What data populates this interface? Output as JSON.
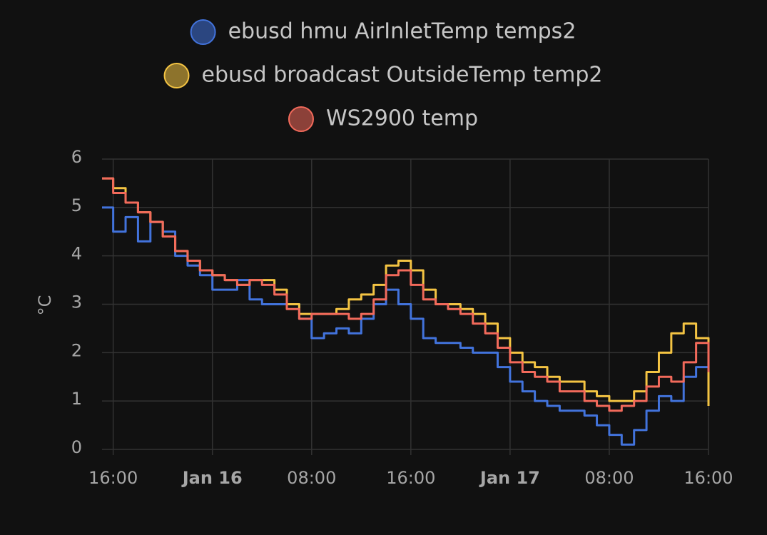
{
  "chart_data": {
    "type": "line",
    "step": true,
    "y_label": "°C",
    "x": [
      15.1,
      16,
      17,
      18,
      19,
      20,
      21,
      22,
      23,
      24,
      25,
      26,
      27,
      28,
      29,
      30,
      31,
      32,
      33,
      34,
      35,
      36,
      37,
      38,
      39,
      40,
      41,
      42,
      43,
      44,
      45,
      46,
      47,
      48,
      49,
      50,
      51,
      52,
      53,
      54,
      55,
      56,
      57,
      58,
      59,
      60,
      61,
      62,
      63,
      64
    ],
    "series": [
      {
        "name": "ebusd hmu AirInletTemp temps2",
        "color": "#4273dc",
        "values": [
          5.0,
          4.5,
          4.8,
          4.3,
          4.7,
          4.5,
          4.0,
          3.8,
          3.6,
          3.3,
          3.3,
          3.5,
          3.1,
          3.0,
          3.0,
          3.0,
          2.7,
          2.3,
          2.4,
          2.5,
          2.4,
          2.7,
          3.0,
          3.3,
          3.0,
          2.7,
          2.3,
          2.2,
          2.2,
          2.1,
          2.0,
          2.0,
          1.7,
          1.4,
          1.2,
          1.0,
          0.9,
          0.8,
          0.8,
          0.7,
          0.5,
          0.3,
          0.1,
          0.4,
          0.8,
          1.1,
          1.0,
          1.5,
          1.7,
          1.1
        ]
      },
      {
        "name": "ebusd broadcast OutsideTemp temp2",
        "color": "#f4c443",
        "values": [
          5.6,
          5.4,
          5.1,
          4.9,
          4.7,
          4.4,
          4.1,
          3.9,
          3.7,
          3.6,
          3.5,
          3.4,
          3.5,
          3.5,
          3.3,
          3.0,
          2.8,
          2.8,
          2.8,
          2.9,
          3.1,
          3.2,
          3.4,
          3.8,
          3.9,
          3.7,
          3.3,
          3.0,
          3.0,
          2.9,
          2.8,
          2.6,
          2.3,
          2.0,
          1.8,
          1.7,
          1.5,
          1.4,
          1.4,
          1.2,
          1.1,
          1.0,
          1.0,
          1.2,
          1.6,
          2.0,
          2.4,
          2.6,
          2.3,
          0.9
        ]
      },
      {
        "name": "WS2900 temp",
        "color": "#f26a5b",
        "values": [
          5.6,
          5.3,
          5.1,
          4.9,
          4.7,
          4.4,
          4.1,
          3.9,
          3.7,
          3.6,
          3.5,
          3.4,
          3.5,
          3.4,
          3.2,
          2.9,
          2.7,
          2.8,
          2.8,
          2.8,
          2.7,
          2.8,
          3.1,
          3.6,
          3.7,
          3.4,
          3.1,
          3.0,
          2.9,
          2.8,
          2.6,
          2.4,
          2.1,
          1.8,
          1.6,
          1.5,
          1.4,
          1.2,
          1.2,
          1.0,
          0.9,
          0.8,
          0.9,
          1.0,
          1.3,
          1.5,
          1.4,
          1.8,
          2.2,
          1.6
        ]
      }
    ],
    "xlim": [
      15.1,
      64
    ],
    "xticks": [
      {
        "value": 16,
        "label": "16:00"
      },
      {
        "value": 24,
        "label": "Jan 16"
      },
      {
        "value": 32,
        "label": "08:00"
      },
      {
        "value": 40,
        "label": "16:00"
      },
      {
        "value": 48,
        "label": "Jan 17"
      },
      {
        "value": 56,
        "label": "08:00"
      },
      {
        "value": 64,
        "label": "16:00"
      }
    ],
    "ylim": [
      0,
      6
    ],
    "yticks": [
      0,
      1,
      2,
      3,
      4,
      5,
      6
    ],
    "grid": true
  }
}
